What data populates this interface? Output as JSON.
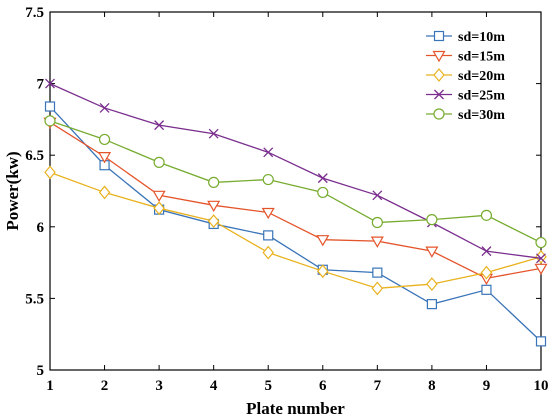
{
  "chart_data": {
    "type": "line",
    "xlabel": "Plate number",
    "ylabel": "Power(kw)",
    "x": [
      1,
      2,
      3,
      4,
      5,
      6,
      7,
      8,
      9,
      10
    ],
    "xlim": [
      1,
      10
    ],
    "ylim": [
      5,
      7.5
    ],
    "x_ticks": [
      "1",
      "2",
      "3",
      "4",
      "5",
      "6",
      "7",
      "8",
      "9",
      "10"
    ],
    "y_ticks": [
      "5",
      "5.5",
      "6",
      "6.5",
      "7",
      "7.5"
    ],
    "grid": false,
    "legend_position": "top-right",
    "series": [
      {
        "name": "sd=10m",
        "marker": "square",
        "color": "#3a74b8",
        "values": [
          6.84,
          6.43,
          6.12,
          6.02,
          5.94,
          5.7,
          5.68,
          5.46,
          5.56,
          5.2
        ]
      },
      {
        "name": "sd=15m",
        "marker": "triangle-down",
        "color": "#e4542a",
        "values": [
          6.73,
          6.49,
          6.22,
          6.15,
          6.1,
          5.91,
          5.9,
          5.83,
          5.64,
          5.71
        ]
      },
      {
        "name": "sd=20m",
        "marker": "diamond",
        "color": "#e8b21f",
        "values": [
          6.38,
          6.24,
          6.13,
          6.04,
          5.82,
          5.69,
          5.57,
          5.6,
          5.68,
          5.79
        ]
      },
      {
        "name": "sd=25m",
        "marker": "x",
        "color": "#7a2e8e",
        "values": [
          7.0,
          6.83,
          6.71,
          6.65,
          6.52,
          6.34,
          6.22,
          6.03,
          5.83,
          5.78
        ]
      },
      {
        "name": "sd=30m",
        "marker": "circle",
        "color": "#77ac30",
        "values": [
          6.74,
          6.61,
          6.45,
          6.31,
          6.33,
          6.24,
          6.03,
          6.05,
          6.08,
          5.89
        ]
      }
    ]
  }
}
